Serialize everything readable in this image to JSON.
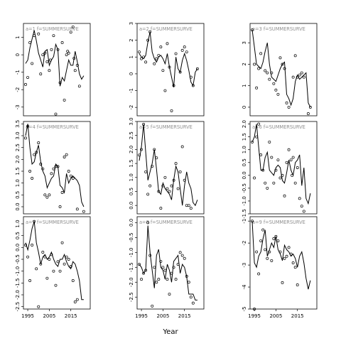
{
  "figure": {
    "xlabel": "Year",
    "x_ticks": [
      1995,
      2005,
      2015
    ]
  },
  "chart_data": [
    {
      "type": "line",
      "strip": "a=1",
      "strip_label": "f=SUMMERSURVE",
      "xlim": [
        1993,
        2024
      ],
      "ylim": [
        -3.5,
        1.8
      ],
      "y_ticks": [
        1,
        0,
        -1,
        -2,
        -3
      ],
      "x": [
        1994,
        1995,
        1996,
        1997,
        1998,
        1999,
        2000,
        2001,
        2002,
        2003,
        2004,
        2005,
        2006,
        2007,
        2008,
        2009,
        2010,
        2011,
        2012,
        2013,
        2014,
        2015,
        2016,
        2017,
        2018,
        2019,
        2020,
        2021
      ],
      "fitted": [
        -0.5,
        -0.3,
        0.4,
        0.9,
        1.4,
        0.8,
        0.1,
        -0.3,
        -0.7,
        0.2,
        0.3,
        -0.6,
        -0.3,
        -0.1,
        0.6,
        0.3,
        -1.8,
        -1.3,
        -1.5,
        -0.9,
        -0.3,
        -0.6,
        -0.6,
        0.2,
        -0.4,
        -1.1,
        -1.4,
        -1.2
      ],
      "observed": [
        -1.7,
        -1.3,
        0.7,
        -0.5,
        1.1,
        1.2,
        -1.1,
        0.0,
        0.1,
        -0.4,
        -0.9,
        0.3,
        1.1,
        -3.4,
        0.3,
        -1.6,
        0.7,
        -2.6,
        0.0,
        0.1,
        1.3,
        1.6,
        -0.9,
        -0.6,
        -1.8,
        -0.3,
        0.2,
        -0.2
      ],
      "obs_x": [
        1994,
        1995,
        1996,
        1997,
        1998,
        2000,
        2001,
        2002,
        2003,
        2004,
        2005,
        2006,
        2007,
        2008,
        2009,
        2010,
        2011,
        2012,
        2013,
        2014,
        2015,
        2016,
        2017,
        2018,
        2019,
        2005.5,
        2013.5,
        2016.5
      ]
    },
    {
      "type": "line",
      "strip": "a=2",
      "strip_label": "f=SUMMERSURVE",
      "xlim": [
        1993,
        2024
      ],
      "ylim": [
        -2.5,
        3.0
      ],
      "y_ticks": [
        3,
        2,
        1,
        0,
        -1,
        -2
      ],
      "x": [
        1994,
        1995,
        1996,
        1997,
        1998,
        1999,
        2000,
        2001,
        2002,
        2003,
        2004,
        2005,
        2006,
        2007,
        2008,
        2009,
        2010,
        2011,
        2012,
        2013,
        2014,
        2015,
        2016,
        2017,
        2018,
        2019,
        2020,
        2021
      ],
      "fitted": [
        1.2,
        1.0,
        0.9,
        1.1,
        1.9,
        2.5,
        1.3,
        0.9,
        0.7,
        1.0,
        1.1,
        0.9,
        0.6,
        1.2,
        0.4,
        -0.2,
        -0.8,
        1.0,
        0.3,
        0.1,
        0.8,
        1.2,
        0.8,
        0.2,
        -0.5,
        -0.7,
        0.1,
        0.3
      ],
      "observed": [
        1.3,
        0.9,
        1.0,
        0.7,
        2.0,
        2.5,
        0.6,
        0.9,
        1.1,
        1.6,
        0.2,
        -1.0,
        1.8,
        0.4,
        -2.2,
        -0.7,
        1.2,
        0.1,
        1.4,
        1.6,
        1.3,
        -0.2,
        -0.7,
        0.3
      ],
      "obs_x": [
        1994,
        1995,
        1996,
        1997,
        1998,
        1999,
        2001,
        2002,
        2003,
        2004,
        2005,
        2006,
        2007,
        2008,
        2009,
        2010,
        2011,
        2013,
        2014,
        2015,
        2016,
        2018,
        2019,
        2021
      ]
    },
    {
      "type": "line",
      "strip": "a=3",
      "strip_label": "f=SUMMERSURVE",
      "xlim": [
        1993,
        2024
      ],
      "ylim": [
        -0.4,
        3.9
      ],
      "y_ticks": [
        3,
        2,
        1,
        0
      ],
      "x": [
        1994,
        1995,
        1996,
        1997,
        1998,
        1999,
        2000,
        2001,
        2002,
        2003,
        2004,
        2005,
        2006,
        2007,
        2008,
        2009,
        2010,
        2011,
        2012,
        2013,
        2014,
        2015,
        2016,
        2017,
        2018,
        2019,
        2020,
        2021
      ],
      "fitted": [
        3.6,
        2.8,
        2.0,
        1.9,
        1.8,
        2.1,
        2.6,
        3.0,
        2.0,
        1.4,
        1.3,
        1.2,
        1.5,
        1.8,
        2.0,
        2.1,
        0.6,
        0.4,
        0.1,
        0.4,
        1.2,
        1.5,
        1.3,
        1.4,
        1.5,
        1.6,
        0.2,
        0.0
      ],
      "observed": [
        3.6,
        2.0,
        0.9,
        1.8,
        2.5,
        1.7,
        1.6,
        1.3,
        1.6,
        1.1,
        0.8,
        0.6,
        2.3,
        2.0,
        1.8,
        0.2,
        0.0,
        1.4,
        2.4,
        1.4,
        1.5,
        1.6,
        1.4,
        -0.3,
        0.0
      ],
      "obs_x": [
        1994,
        1995,
        1996,
        1997,
        1998,
        2000,
        2001,
        2002,
        2003,
        2004,
        2005,
        2006,
        2007,
        2008,
        2009,
        2010,
        2011,
        2013,
        2014,
        2015,
        2016,
        2017,
        2018,
        2020,
        2021
      ]
    },
    {
      "type": "line",
      "strip": "a=4",
      "strip_label": "f=SUMMERSURVE",
      "xlim": [
        1993,
        2024
      ],
      "ylim": [
        -0.3,
        3.6
      ],
      "y_ticks": [
        3.5,
        3.0,
        2.5,
        2.0,
        1.5,
        1.0,
        0.5,
        0.0
      ],
      "x": [
        1994,
        1995,
        1996,
        1997,
        1998,
        1999,
        2000,
        2001,
        2002,
        2003,
        2004,
        2005,
        2006,
        2007,
        2008,
        2009,
        2010,
        2011,
        2012,
        2013,
        2014,
        2015,
        2016,
        2017,
        2018,
        2019,
        2020,
        2021
      ],
      "fitted": [
        3.0,
        3.5,
        2.5,
        1.8,
        1.9,
        2.3,
        2.6,
        1.9,
        1.5,
        1.3,
        0.8,
        1.0,
        1.2,
        1.3,
        1.8,
        1.7,
        0.9,
        0.8,
        0.6,
        1.4,
        1.0,
        1.2,
        1.3,
        1.2,
        1.1,
        0.9,
        0.2,
        0.0
      ],
      "observed": [
        2.9,
        3.4,
        1.5,
        1.2,
        2.2,
        2.3,
        2.7,
        1.8,
        1.6,
        0.5,
        0.4,
        0.5,
        1.4,
        1.6,
        1.7,
        1.7,
        0.0,
        0.6,
        2.1,
        2.2,
        1.5,
        1.3,
        1.2,
        -0.1,
        -0.2
      ],
      "obs_x": [
        1994,
        1995,
        1996,
        1997,
        1998,
        1999,
        2000,
        2001,
        2002,
        2003,
        2004,
        2005,
        2006,
        2007,
        2008,
        2009,
        2010,
        2011,
        2012,
        2013,
        2014,
        2015,
        2016,
        2018,
        2021
      ]
    },
    {
      "type": "line",
      "strip": "a=5",
      "strip_label": "f=SUMMERSURVE",
      "xlim": [
        1993,
        2024
      ],
      "ylim": [
        -0.3,
        3.0
      ],
      "y_ticks": [
        3.0,
        2.5,
        2.0,
        1.5,
        1.0,
        0.5,
        0.0
      ],
      "x": [
        1994,
        1995,
        1996,
        1997,
        1998,
        1999,
        2000,
        2001,
        2002,
        2003,
        2004,
        2005,
        2006,
        2007,
        2008,
        2009,
        2010,
        2011,
        2012,
        2013,
        2014,
        2015,
        2016,
        2017,
        2018,
        2019,
        2020,
        2021
      ],
      "fitted": [
        1.6,
        2.1,
        2.9,
        1.9,
        0.9,
        1.2,
        1.5,
        2.0,
        1.3,
        0.5,
        0.4,
        0.8,
        0.6,
        0.5,
        0.4,
        0.2,
        0.9,
        1.4,
        1.2,
        0.6,
        0.0,
        0.7,
        1.2,
        0.8,
        0.6,
        0.1,
        0.0,
        0.2
      ],
      "observed": [
        1.8,
        2.0,
        2.9,
        1.2,
        0.4,
        0.7,
        1.4,
        2.0,
        1.7,
        0.5,
        -0.1,
        0.7,
        1.0,
        0.6,
        0.5,
        0.7,
        0.9,
        1.5,
        0.6,
        1.2,
        2.1,
        0.9,
        0.0,
        0.0,
        -0.1
      ],
      "obs_x": [
        1994,
        1995,
        1996,
        1997,
        1998,
        1999,
        2000,
        2001,
        2002,
        2003,
        2004,
        2005,
        2006,
        2007,
        2008,
        2009,
        2010,
        2011,
        2012,
        2013,
        2014,
        2015,
        2016,
        2017,
        2018
      ]
    },
    {
      "type": "line",
      "strip": "a=6",
      "strip_label": "f=SUMMERSURVE",
      "xlim": [
        1993,
        2024
      ],
      "ylim": [
        -1.5,
        2.1
      ],
      "y_ticks": [
        2.0,
        1.5,
        1.0,
        0.5,
        0.0,
        -0.5,
        -1.0,
        -1.5
      ],
      "x": [
        1994,
        1995,
        1996,
        1997,
        1998,
        1999,
        2000,
        2001,
        2002,
        2003,
        2004,
        2005,
        2006,
        2007,
        2008,
        2009,
        2010,
        2011,
        2012,
        2013,
        2014,
        2015,
        2016,
        2017,
        2018,
        2019,
        2020,
        2021
      ],
      "fitted": [
        1.3,
        1.5,
        2.0,
        1.1,
        0.2,
        0.2,
        0.7,
        0.9,
        0.2,
        0.1,
        0.0,
        0.3,
        0.4,
        0.3,
        -0.2,
        -0.3,
        0.1,
        0.6,
        0.2,
        0.0,
        0.5,
        0.6,
        0.8,
        -0.4,
        0.3,
        -0.9,
        -1.1,
        -0.7
      ],
      "observed": [
        1.3,
        -0.1,
        1.5,
        2.0,
        0.8,
        0.2,
        -0.3,
        -0.5,
        1.3,
        0.7,
        -0.3,
        0.2,
        0.6,
        -0.1,
        0.0,
        -0.8,
        0.5,
        1.0,
        0.6,
        0.7,
        -0.3,
        0.3,
        -0.9,
        -1.2,
        -1.4,
        0.0
      ],
      "obs_x": [
        1994,
        1995,
        1996,
        1997,
        1998,
        1999,
        2000,
        2001,
        2002,
        2003,
        2004,
        2005,
        2006,
        2007,
        2008,
        2009,
        2010,
        2011,
        2012,
        2013,
        2014,
        2015,
        2016,
        2017,
        2018,
        2012.5
      ]
    },
    {
      "type": "line",
      "strip": "a=7",
      "strip_label": "f=SUMMERSURVE",
      "xlim": [
        1993,
        2024
      ],
      "ylim": [
        -2.6,
        1.3
      ],
      "y_ticks": [
        1.0,
        0.5,
        0.0,
        -0.5,
        -1.0,
        -1.5,
        -2.0,
        -2.5
      ],
      "x": [
        1994,
        1995,
        1996,
        1997,
        1998,
        1999,
        2000,
        2001,
        2002,
        2003,
        2004,
        2005,
        2006,
        2007,
        2008,
        2009,
        2010,
        2011,
        2012,
        2013,
        2014,
        2015,
        2016,
        2017,
        2018,
        2019,
        2020,
        2021
      ],
      "fitted": [
        0.2,
        -0.1,
        0.3,
        0.8,
        1.1,
        0.2,
        -0.2,
        -0.7,
        -0.4,
        -0.3,
        -0.5,
        -0.4,
        -0.2,
        -0.5,
        -0.7,
        -0.8,
        -0.5,
        -0.5,
        -0.3,
        -0.6,
        -0.8,
        -0.9,
        -0.6,
        -0.7,
        -1.0,
        -1.4,
        -2.2,
        -2.2
      ],
      "observed": [
        0.1,
        -0.4,
        -1.4,
        0.1,
        1.1,
        -0.9,
        -2.5,
        -0.7,
        -0.2,
        -0.4,
        -1.3,
        -0.5,
        -0.3,
        -1.0,
        -1.6,
        -0.6,
        -1.0,
        0.2,
        -0.7,
        -0.4,
        -0.5,
        -0.8,
        -1.4,
        -2.3,
        -2.2
      ],
      "obs_x": [
        1994,
        1995,
        1996,
        1997,
        1998,
        1999,
        2000,
        2001,
        2002,
        2003,
        2004,
        2005,
        2006,
        2007,
        2008,
        2009,
        2010,
        2011,
        2012,
        2013,
        2014,
        2015,
        2016,
        2017,
        2018
      ]
    },
    {
      "type": "line",
      "strip": "a=8",
      "strip_label": "f=SUMMERSURVE",
      "xlim": [
        1993,
        2024
      ],
      "ylim": [
        -2.9,
        0.2
      ],
      "y_ticks": [
        0.0,
        -0.5,
        -1.0,
        -1.5,
        -2.0,
        -2.5
      ],
      "x": [
        1994,
        1995,
        1996,
        1997,
        1998,
        1999,
        2000,
        2001,
        2002,
        2003,
        2004,
        2005,
        2006,
        2007,
        2008,
        2009,
        2010,
        2011,
        2012,
        2013,
        2014,
        2015,
        2016,
        2017,
        2018,
        2019,
        2020,
        2021
      ],
      "fitted": [
        -1.4,
        -1.5,
        -1.7,
        -1.6,
        -0.1,
        -1.0,
        -1.6,
        -2.2,
        -1.1,
        -0.9,
        -1.5,
        -1.6,
        -1.9,
        -1.4,
        -1.6,
        -2.0,
        -1.3,
        -1.2,
        -1.1,
        -1.7,
        -1.4,
        -1.5,
        -1.8,
        -2.4,
        -2.4,
        -2.4,
        -2.6,
        -2.6
      ],
      "observed": [
        -1.4,
        -1.9,
        -1.7,
        -1.6,
        0.0,
        -1.1,
        -2.8,
        -1.5,
        -2.0,
        -1.9,
        -1.3,
        -1.5,
        -1.6,
        -1.9,
        -2.4,
        -1.7,
        -1.5,
        -1.9,
        -1.4,
        -1.0,
        -1.1,
        -1.2,
        -1.8,
        -2.0,
        -2.5,
        -2.7
      ],
      "obs_x": [
        1994,
        1995,
        1996,
        1997,
        1998,
        1999,
        2000,
        2001,
        2002,
        2003,
        2004,
        2005,
        2006,
        2007,
        2008,
        2009,
        2010,
        2011,
        2012,
        2013,
        2014,
        2015,
        2016,
        2017,
        2018,
        2019
      ]
    },
    {
      "type": "line",
      "strip": "a=9",
      "strip_label": "f=SUMMERSURVE",
      "xlim": [
        1993,
        2024
      ],
      "ylim": [
        -5.0,
        -0.8
      ],
      "y_ticks": [
        -1,
        -2,
        -3,
        -4,
        -5
      ],
      "x": [
        1994,
        1995,
        1996,
        1997,
        1998,
        1999,
        2000,
        2001,
        2002,
        2003,
        2004,
        2005,
        2006,
        2007,
        2008,
        2009,
        2010,
        2011,
        2012,
        2013,
        2014,
        2015,
        2016,
        2017,
        2018,
        2019,
        2020,
        2021
      ],
      "fitted": [
        -1.0,
        -2.9,
        -3.1,
        -2.6,
        -2.4,
        -1.8,
        -1.4,
        -2.6,
        -2.3,
        -2.0,
        -2.2,
        -1.7,
        -2.3,
        -2.5,
        -2.8,
        -2.1,
        -2.3,
        -2.4,
        -2.6,
        -2.5,
        -2.7,
        -3.1,
        -2.6,
        -2.4,
        -2.9,
        -3.6,
        -4.1,
        -3.7
      ],
      "observed": [
        -1.0,
        -5.0,
        -2.4,
        -3.4,
        -1.9,
        -1.4,
        -2.3,
        -2.7,
        -2.4,
        -2.8,
        -1.8,
        -1.7,
        -1.9,
        -2.4,
        -3.8,
        -2.7,
        -2.6,
        -2.2,
        -2.5,
        -2.9,
        -3.1,
        -3.9
      ],
      "obs_x": [
        1994,
        1995,
        1996,
        1997,
        1998,
        1999,
        2000,
        2001,
        2002,
        2003,
        2004,
        2005,
        2006,
        2007,
        2008,
        2009,
        2010,
        2011,
        2012,
        2013,
        2014,
        2015
      ]
    }
  ]
}
